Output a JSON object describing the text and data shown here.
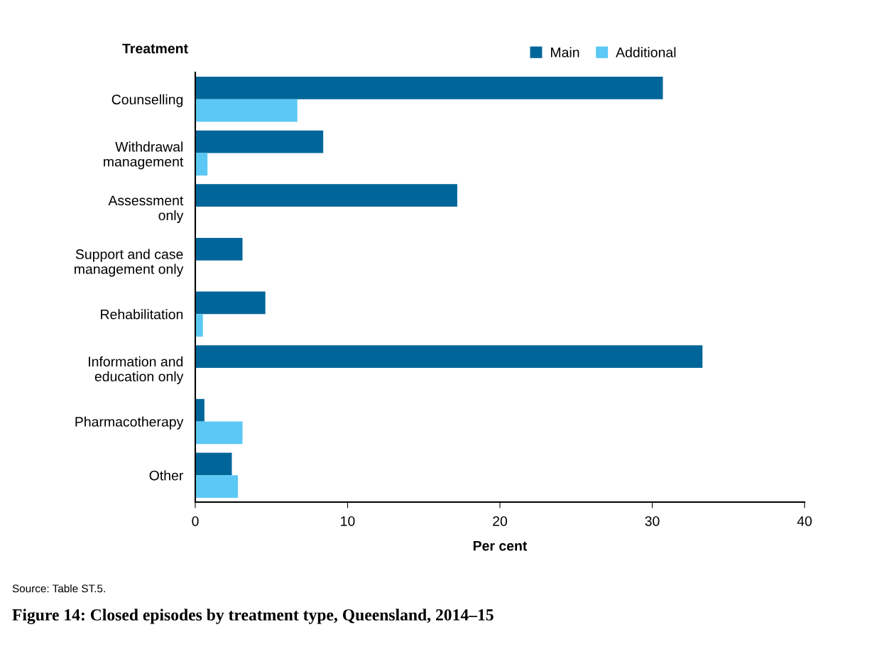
{
  "chart_data": {
    "type": "bar",
    "orientation": "horizontal",
    "title": "Figure 14: Closed episodes by treatment type, Queensland, 2014–15",
    "ylabel": "Treatment",
    "xlabel": "Per cent",
    "categories": [
      "Counselling",
      "Withdrawal\nmanagement",
      "Assessment\nonly",
      "Support and case\nmanagement only",
      "Rehabilitation",
      "Information and\neducation only",
      "Pharmacotherapy",
      "Other"
    ],
    "series": [
      {
        "name": "Main",
        "color": "#006699",
        "values": [
          30.7,
          8.4,
          17.2,
          3.1,
          4.6,
          33.3,
          0.6,
          2.4
        ]
      },
      {
        "name": "Additional",
        "color": "#5bc8f5",
        "values": [
          6.7,
          0.8,
          null,
          null,
          0.5,
          null,
          3.1,
          2.8
        ]
      }
    ],
    "xlim": [
      0,
      40
    ],
    "xticks": [
      0,
      10,
      20,
      30,
      40
    ],
    "grid": false,
    "legend": "top",
    "annotations": [
      "Source: Table ST.5."
    ]
  }
}
